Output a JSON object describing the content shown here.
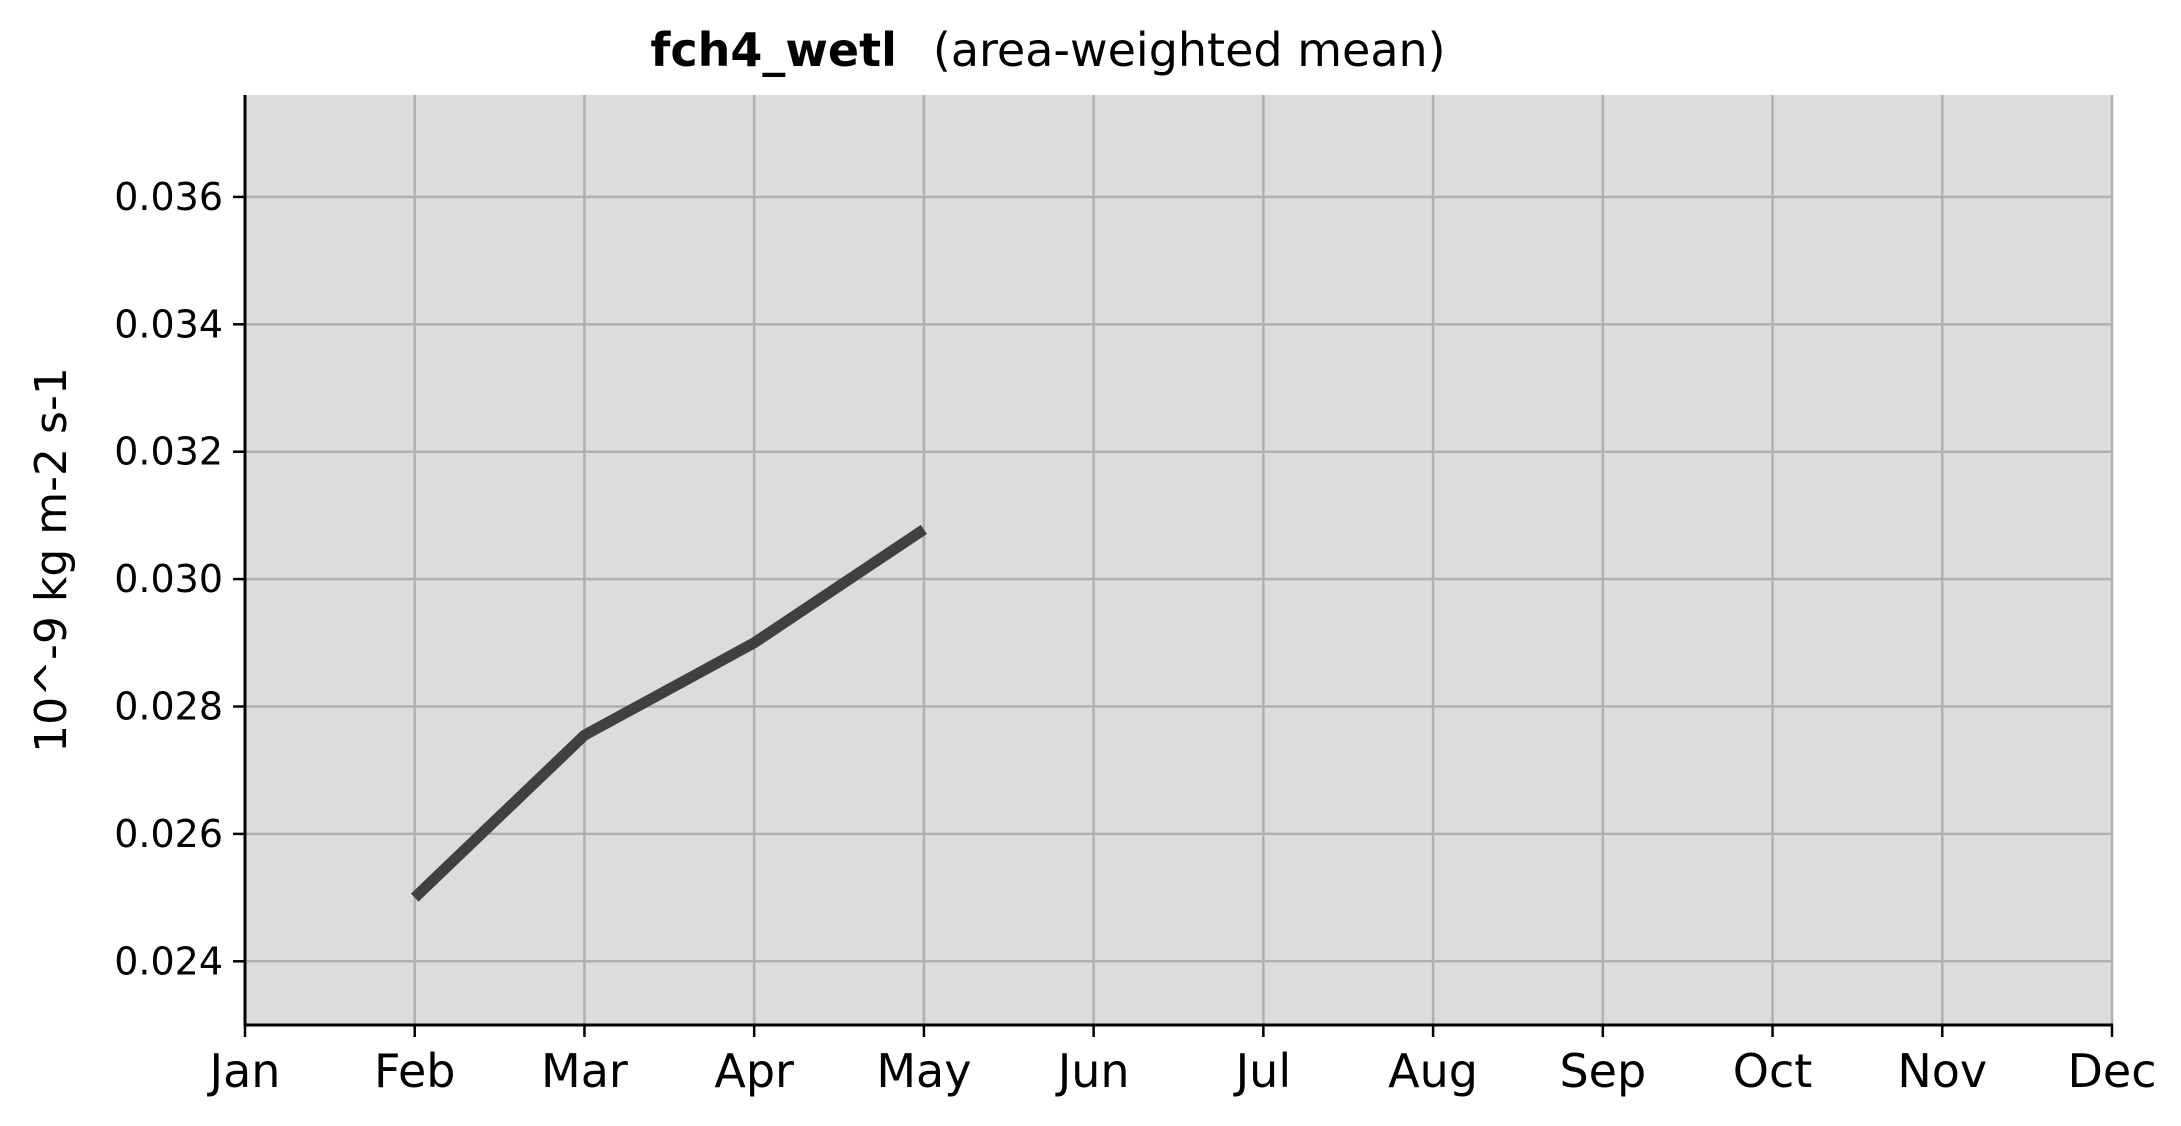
{
  "chart_data": {
    "type": "line",
    "title": "fch4_wetl",
    "subtitle": "(area-weighted mean)",
    "xlabel": "",
    "ylabel": "10^-9 kg m-2 s-1",
    "categories": [
      "Jan",
      "Feb",
      "Mar",
      "Apr",
      "May",
      "Jun",
      "Jul",
      "Aug",
      "Sep",
      "Oct",
      "Nov",
      "Dec"
    ],
    "series": [
      {
        "x": [
          "Feb",
          "Mar",
          "Apr",
          "May"
        ],
        "values": [
          0.025,
          0.02755,
          0.029,
          0.03078
        ],
        "color": "#404040"
      }
    ],
    "yticks": [
      "0.024",
      "0.026",
      "0.028",
      "0.030",
      "0.032",
      "0.034",
      "0.036"
    ],
    "ylim": [
      0.023,
      0.0376
    ],
    "grid": true,
    "background_color": "#dcdcdc",
    "grid_color": "#b0b0b0"
  }
}
